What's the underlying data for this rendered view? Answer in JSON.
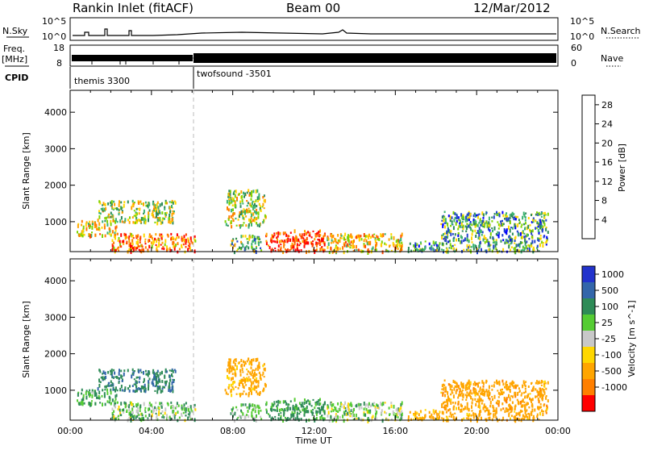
{
  "header": {
    "station": "Rankin Inlet (fitACF)",
    "beam": "Beam 00",
    "date": "12/Mar/2012"
  },
  "status_panels": {
    "nsky_label": "N.Sky",
    "nsearch_label": "N.Search",
    "nsky_ticks": [
      "10^5",
      "10^0"
    ],
    "nsearch_ticks": [
      "10^5",
      "10^0"
    ],
    "freq_label": "Freq.",
    "freq_unit": "[MHz]",
    "freq_ticks": [
      "18",
      "8"
    ],
    "nave_label": "Nave",
    "nave_ticks": [
      "60",
      "0"
    ],
    "cpid_label": "CPID",
    "cpid_1": "themis 3300",
    "cpid_2": "twofsound -3501"
  },
  "colors": {
    "power_scale": [
      "#0000ff",
      "#2244cc",
      "#2e8b57",
      "#3cb371",
      "#7fd400",
      "#ffd700",
      "#ffa500",
      "#ff7f00",
      "#ff4500",
      "#ff0000"
    ],
    "velocity_scale": [
      "#2233cc",
      "#3366aa",
      "#2e8b57",
      "#55cc33",
      "#c8c8c8",
      "#ffd700",
      "#ffa500",
      "#ff7f00",
      "#ff0000"
    ]
  },
  "chart_data": [
    {
      "type": "heatmap",
      "panel": "power",
      "xlabel": "",
      "ylabel": "Slant Range [km]",
      "xlim": [
        0,
        24
      ],
      "ylim": [
        180,
        4600
      ],
      "yticks": [
        "1000",
        "2000",
        "3000",
        "4000"
      ],
      "colorbar_label": "Power [dB]",
      "colorbar_ticks": [
        "4",
        "8",
        "12",
        "16",
        "20",
        "24",
        "28"
      ],
      "colorbar_range": [
        0,
        30
      ],
      "regions": [
        {
          "t0": 0.3,
          "t1": 2.3,
          "r0": 650,
          "r1": 1050,
          "value": 18
        },
        {
          "t0": 1.3,
          "t1": 5.2,
          "r0": 1000,
          "r1": 1600,
          "value": 14
        },
        {
          "t0": 2.0,
          "t1": 6.2,
          "r0": 200,
          "r1": 700,
          "value": 22
        },
        {
          "t0": 7.6,
          "t1": 9.6,
          "r0": 900,
          "r1": 1900,
          "value": 15
        },
        {
          "t0": 7.8,
          "t1": 9.4,
          "r0": 200,
          "r1": 650,
          "value": 12
        },
        {
          "t0": 9.6,
          "t1": 12.5,
          "r0": 200,
          "r1": 800,
          "value": 26
        },
        {
          "t0": 12.6,
          "t1": 16.3,
          "r0": 200,
          "r1": 700,
          "value": 18
        },
        {
          "t0": 18.2,
          "t1": 23.5,
          "r0": 200,
          "r1": 1300,
          "value": 10
        },
        {
          "t0": 16.6,
          "t1": 18.2,
          "r0": 200,
          "r1": 500,
          "value": 8
        }
      ]
    },
    {
      "type": "heatmap",
      "panel": "velocity",
      "xlabel": "Time UT",
      "ylabel": "Slant Range [km]",
      "xlim": [
        0,
        24
      ],
      "ylim": [
        180,
        4600
      ],
      "xticks": [
        "00:00",
        "04:00",
        "08:00",
        "12:00",
        "16:00",
        "20:00",
        "00:00"
      ],
      "yticks": [
        "1000",
        "2000",
        "3000",
        "4000"
      ],
      "colorbar_label": "Velocity [m s^-1]",
      "colorbar_ticks": [
        "1000",
        "500",
        "100",
        "25",
        "-25",
        "-100",
        "-500",
        "-1000"
      ],
      "regions": [
        {
          "t0": 0.3,
          "t1": 2.3,
          "r0": 650,
          "r1": 1050,
          "value": 120
        },
        {
          "t0": 1.3,
          "t1": 5.2,
          "r0": 1000,
          "r1": 1600,
          "value": 400
        },
        {
          "t0": 2.0,
          "t1": 6.2,
          "r0": 200,
          "r1": 700,
          "value": 60
        },
        {
          "t0": 7.6,
          "t1": 9.6,
          "r0": 900,
          "r1": 1900,
          "value": -200
        },
        {
          "t0": 7.8,
          "t1": 9.4,
          "r0": 200,
          "r1": 650,
          "value": 80
        },
        {
          "t0": 9.6,
          "t1": 12.5,
          "r0": 200,
          "r1": 800,
          "value": 150
        },
        {
          "t0": 12.6,
          "t1": 16.3,
          "r0": 200,
          "r1": 700,
          "value": 30
        },
        {
          "t0": 18.2,
          "t1": 23.5,
          "r0": 200,
          "r1": 1300,
          "value": -300
        },
        {
          "t0": 16.6,
          "t1": 18.2,
          "r0": 200,
          "r1": 500,
          "value": -150
        }
      ]
    }
  ]
}
